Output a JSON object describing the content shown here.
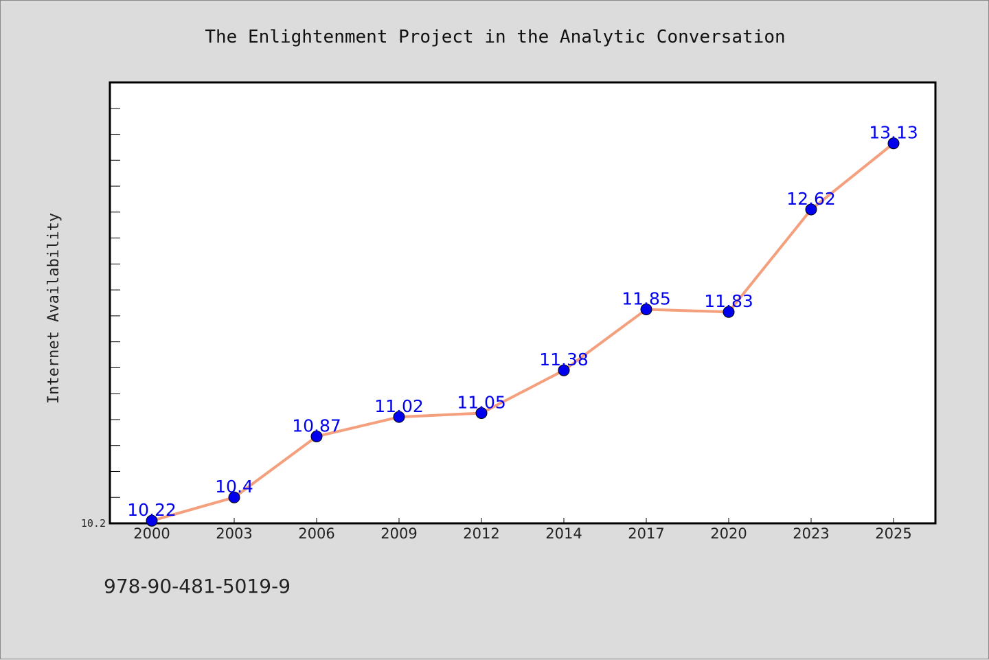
{
  "chart_data": {
    "type": "line",
    "title": "The Enlightenment Project in the Analytic Conversation",
    "xlabel": "",
    "ylabel": "Internet Availability",
    "categories": [
      "2000",
      "2003",
      "2006",
      "2009",
      "2012",
      "2014",
      "2017",
      "2020",
      "2023",
      "2025"
    ],
    "series": [
      {
        "values": [
          10.22,
          10.4,
          10.87,
          11.02,
          11.05,
          11.38,
          11.85,
          11.83,
          12.62,
          13.13
        ]
      }
    ],
    "value_labels": [
      "10.22",
      "10.4",
      "10.87",
      "11.02",
      "11.05",
      "11.38",
      "11.85",
      "11.83",
      "12.62",
      "13.13"
    ],
    "ylim": [
      10.2,
      13.6
    ],
    "y_ticks_labeled": [
      {
        "value": 10.2,
        "label": "10.2"
      }
    ],
    "y_minor_step": 0.2,
    "grid": false,
    "line_color": "#f4a07e",
    "marker_color": "#0000ee",
    "label_color": "#0000ee"
  },
  "footer": {
    "code": "978-90-481-5019-9"
  }
}
